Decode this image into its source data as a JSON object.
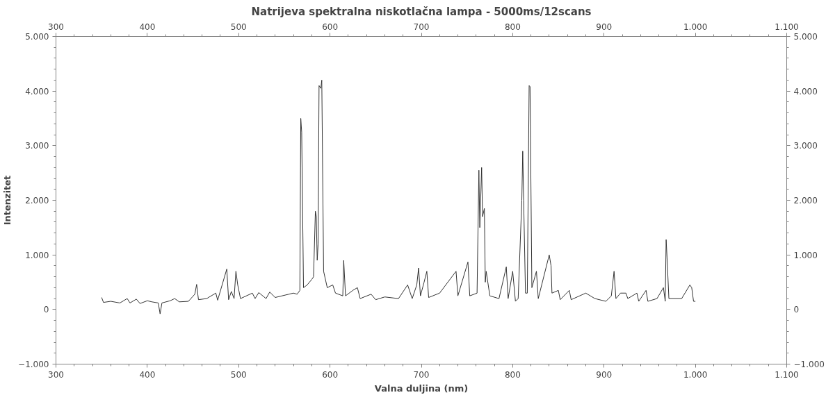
{
  "chart_data": {
    "type": "line",
    "title": "Natrijeva spektralna niskotlačna lampa - 5000ms/12scans",
    "xlabel": "Valna duljina (nm)",
    "ylabel": "Intenzitet",
    "grid": false,
    "marker": "none",
    "line_style": "solid",
    "xlim": [
      300,
      1100
    ],
    "xticks": [
      300,
      400,
      500,
      600,
      700,
      800,
      900,
      {
        "value": 1000,
        "label": "1.000"
      },
      {
        "value": 1100,
        "label": "1.100"
      }
    ],
    "x2lim": [
      300,
      1100
    ],
    "x2ticks": [
      300,
      400,
      500,
      600,
      700,
      800,
      900,
      {
        "value": 1000,
        "label": "1.000"
      },
      {
        "value": 1100,
        "label": "1.100"
      }
    ],
    "ylim": [
      -1000,
      5000
    ],
    "yticks": [
      {
        "value": -1000,
        "label": "−1.000"
      },
      0,
      {
        "value": 1000,
        "label": "1.000"
      },
      {
        "value": 2000,
        "label": "2.000"
      },
      {
        "value": 3000,
        "label": "3.000"
      },
      {
        "value": 4000,
        "label": "4.000"
      },
      {
        "value": 5000,
        "label": "5.000"
      }
    ],
    "y2lim": [
      -1000,
      5000
    ],
    "y2ticks": [
      {
        "value": -1000,
        "label": "−1.000"
      },
      0,
      {
        "value": 1000,
        "label": "1.000"
      },
      {
        "value": 2000,
        "label": "2.000"
      },
      {
        "value": 3000,
        "label": "3.000"
      },
      {
        "value": 4000,
        "label": "4.000"
      },
      {
        "value": 5000,
        "label": "5.000"
      }
    ],
    "series": [
      {
        "color": "#333333",
        "x": [
          350,
          352,
          360,
          370,
          378,
          381,
          388,
          392,
          400,
          405,
          412,
          414,
          416,
          425,
          430,
          435,
          445,
          452,
          454,
          456,
          465,
          475,
          477,
          487,
          489,
          492,
          495,
          497,
          499,
          502,
          515,
          518,
          522,
          530,
          534,
          540,
          555,
          560,
          564,
          567,
          568,
          569,
          571,
          575,
          580,
          582,
          584,
          585,
          586,
          587,
          588,
          590,
          591,
          593,
          597,
          603,
          606,
          614,
          615,
          617,
          625,
          630,
          633,
          645,
          650,
          660,
          675,
          685,
          690,
          695,
          697,
          699,
          703,
          706,
          708,
          720,
          738,
          740,
          751,
          753,
          761,
          763,
          764,
          766,
          767,
          769,
          770,
          771,
          775,
          785,
          793,
          795,
          800,
          803,
          806,
          810,
          811,
          812,
          814,
          816,
          818,
          819,
          821,
          826,
          828,
          840,
          842,
          843,
          850,
          852,
          862,
          864,
          880,
          890,
          902,
          908,
          911,
          913,
          918,
          924,
          926,
          936,
          938,
          946,
          948,
          958,
          965,
          967,
          968,
          969,
          971,
          985,
          994,
          996,
          998,
          1000
        ],
        "values": [
          220,
          130,
          150,
          120,
          200,
          120,
          190,
          110,
          160,
          140,
          120,
          -80,
          120,
          160,
          200,
          140,
          150,
          280,
          460,
          180,
          200,
          300,
          170,
          740,
          180,
          330,
          200,
          700,
          450,
          200,
          300,
          200,
          310,
          200,
          320,
          220,
          280,
          300,
          280,
          350,
          3500,
          3250,
          400,
          450,
          550,
          600,
          1800,
          1700,
          900,
          1200,
          4100,
          4050,
          4200,
          700,
          400,
          450,
          300,
          250,
          900,
          250,
          350,
          400,
          200,
          280,
          180,
          230,
          200,
          450,
          200,
          450,
          760,
          250,
          500,
          700,
          220,
          300,
          700,
          250,
          870,
          250,
          300,
          2550,
          1500,
          2600,
          1700,
          1850,
          500,
          700,
          250,
          200,
          780,
          200,
          700,
          150,
          200,
          2000,
          2900,
          2000,
          300,
          300,
          4100,
          4080,
          400,
          700,
          200,
          1000,
          800,
          300,
          350,
          180,
          350,
          180,
          300,
          200,
          150,
          250,
          700,
          200,
          300,
          300,
          200,
          300,
          150,
          350,
          150,
          200,
          400,
          150,
          1280,
          950,
          200,
          200,
          450,
          400,
          150,
          150
        ]
      }
    ]
  }
}
